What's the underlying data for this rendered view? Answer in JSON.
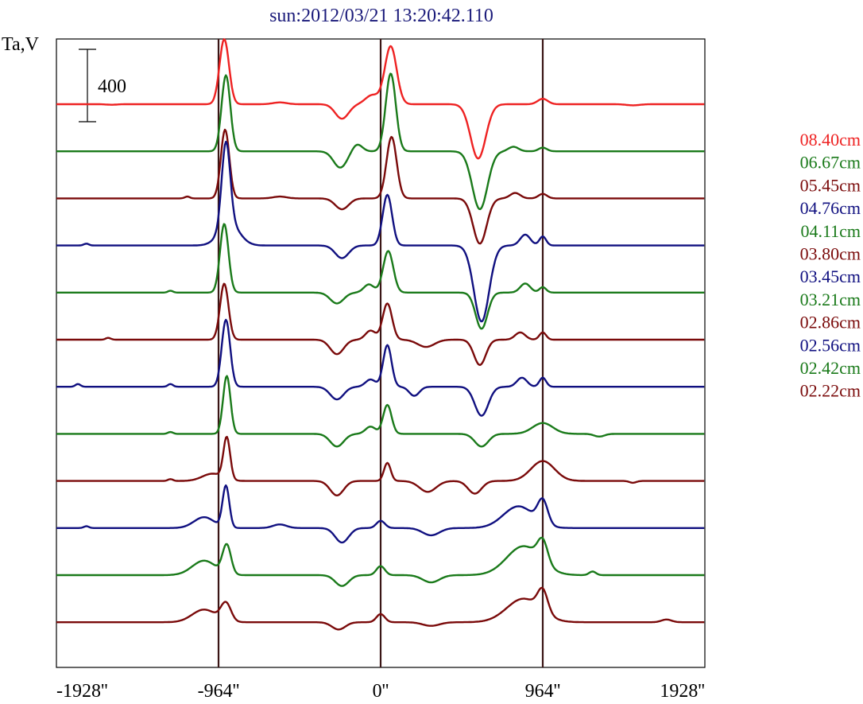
{
  "chart_data": {
    "type": "line",
    "title": "sun:2012/03/21 13:20:42.110",
    "ylabel": "Ta,V",
    "xlim": [
      -1928,
      1928
    ],
    "x_ticks": [
      {
        "value": -1928,
        "label": "-1928''"
      },
      {
        "value": -964,
        "label": "-964''"
      },
      {
        "value": 0,
        "label": "0''"
      },
      {
        "value": 964,
        "label": "964''"
      },
      {
        "value": 1928,
        "label": "1928''"
      }
    ],
    "vertical_lines_at": [
      -964,
      0,
      964
    ],
    "scale_bar": {
      "value": 400,
      "label": "400"
    },
    "grid": false,
    "legend_position": "right",
    "series": [
      {
        "name": "08.40cm",
        "color": "#ee2222",
        "baseline": 0,
        "features": [
          [
            -1600,
            -3,
            30
          ],
          [
            -930,
            360,
            28
          ],
          [
            -600,
            10,
            40
          ],
          [
            -230,
            -80,
            40
          ],
          [
            -50,
            50,
            40
          ],
          [
            60,
            320,
            35
          ],
          [
            580,
            -300,
            45
          ],
          [
            964,
            30,
            30
          ],
          [
            1500,
            -6,
            40
          ]
        ]
      },
      {
        "name": "06.67cm",
        "color": "#1a7a1a",
        "baseline": -1,
        "features": [
          [
            -920,
            420,
            26
          ],
          [
            -240,
            -90,
            40
          ],
          [
            -140,
            40,
            30
          ],
          [
            60,
            430,
            30
          ],
          [
            590,
            -320,
            45
          ],
          [
            790,
            25,
            30
          ],
          [
            964,
            20,
            25
          ]
        ]
      },
      {
        "name": "05.45cm",
        "color": "#7a0a0a",
        "baseline": -2,
        "features": [
          [
            -1150,
            10,
            15
          ],
          [
            -925,
            380,
            25
          ],
          [
            -600,
            10,
            40
          ],
          [
            -230,
            -60,
            40
          ],
          [
            65,
            340,
            30
          ],
          [
            590,
            -250,
            40
          ],
          [
            800,
            30,
            30
          ],
          [
            964,
            25,
            25
          ]
        ]
      },
      {
        "name": "04.76cm",
        "color": "#101080",
        "baseline": -3,
        "features": [
          [
            -1750,
            10,
            15
          ],
          [
            -920,
            460,
            25
          ],
          [
            -900,
            120,
            60
          ],
          [
            -230,
            -70,
            40
          ],
          [
            40,
            280,
            28
          ],
          [
            600,
            -420,
            45
          ],
          [
            860,
            60,
            30
          ],
          [
            964,
            50,
            20
          ]
        ]
      },
      {
        "name": "04.11cm",
        "color": "#1a7a1a",
        "baseline": -4,
        "features": [
          [
            -1250,
            10,
            15
          ],
          [
            -930,
            380,
            25
          ],
          [
            -260,
            -60,
            40
          ],
          [
            -70,
            45,
            30
          ],
          [
            45,
            230,
            30
          ],
          [
            600,
            -200,
            35
          ],
          [
            860,
            50,
            30
          ],
          [
            964,
            30,
            20
          ]
        ]
      },
      {
        "name": "03.80cm",
        "color": "#7a0a0a",
        "baseline": -5,
        "features": [
          [
            -1620,
            10,
            15
          ],
          [
            -930,
            310,
            25
          ],
          [
            -260,
            -80,
            40
          ],
          [
            -60,
            50,
            30
          ],
          [
            40,
            200,
            28
          ],
          [
            270,
            -40,
            50
          ],
          [
            590,
            -140,
            35
          ],
          [
            830,
            40,
            30
          ],
          [
            964,
            40,
            20
          ]
        ]
      },
      {
        "name": "03.45cm",
        "color": "#101080",
        "baseline": -6,
        "features": [
          [
            -1800,
            15,
            15
          ],
          [
            -1250,
            15,
            15
          ],
          [
            -920,
            370,
            25
          ],
          [
            -260,
            -70,
            40
          ],
          [
            -60,
            40,
            30
          ],
          [
            40,
            230,
            25
          ],
          [
            200,
            -50,
            30
          ],
          [
            600,
            -160,
            40
          ],
          [
            840,
            50,
            30
          ],
          [
            964,
            50,
            20
          ]
        ]
      },
      {
        "name": "03.21cm",
        "color": "#1a7a1a",
        "baseline": -7,
        "features": [
          [
            -1250,
            10,
            15
          ],
          [
            -915,
            320,
            22
          ],
          [
            -260,
            -70,
            40
          ],
          [
            -60,
            40,
            30
          ],
          [
            40,
            160,
            25
          ],
          [
            600,
            -70,
            40
          ],
          [
            964,
            60,
            60
          ],
          [
            1300,
            -15,
            30
          ]
        ]
      },
      {
        "name": "02.86cm",
        "color": "#7a0a0a",
        "baseline": -8,
        "features": [
          [
            -1250,
            10,
            15
          ],
          [
            -1000,
            40,
            60
          ],
          [
            -915,
            230,
            20
          ],
          [
            -260,
            -80,
            40
          ],
          [
            40,
            100,
            20
          ],
          [
            280,
            -60,
            50
          ],
          [
            560,
            -70,
            40
          ],
          [
            964,
            110,
            70
          ],
          [
            1500,
            -10,
            20
          ]
        ]
      },
      {
        "name": "02.56cm",
        "color": "#101080",
        "baseline": -9,
        "features": [
          [
            -1750,
            10,
            15
          ],
          [
            -1050,
            60,
            60
          ],
          [
            -920,
            230,
            20
          ],
          [
            -600,
            20,
            40
          ],
          [
            -230,
            -80,
            40
          ],
          [
            0,
            40,
            25
          ],
          [
            300,
            -40,
            50
          ],
          [
            820,
            120,
            90
          ],
          [
            964,
            130,
            30
          ]
        ]
      },
      {
        "name": "02.42cm",
        "color": "#1a7a1a",
        "baseline": -10,
        "features": [
          [
            -1050,
            80,
            70
          ],
          [
            -915,
            160,
            25
          ],
          [
            -230,
            -60,
            40
          ],
          [
            0,
            50,
            25
          ],
          [
            300,
            -40,
            50
          ],
          [
            850,
            160,
            100
          ],
          [
            964,
            120,
            30
          ],
          [
            1260,
            20,
            20
          ]
        ]
      },
      {
        "name": "02.22cm",
        "color": "#7a0a0a",
        "baseline": -11,
        "features": [
          [
            -1050,
            70,
            70
          ],
          [
            -920,
            100,
            30
          ],
          [
            -250,
            -40,
            40
          ],
          [
            0,
            45,
            25
          ],
          [
            300,
            -20,
            50
          ],
          [
            850,
            130,
            100
          ],
          [
            964,
            120,
            30
          ],
          [
            1700,
            15,
            30
          ]
        ]
      }
    ]
  }
}
